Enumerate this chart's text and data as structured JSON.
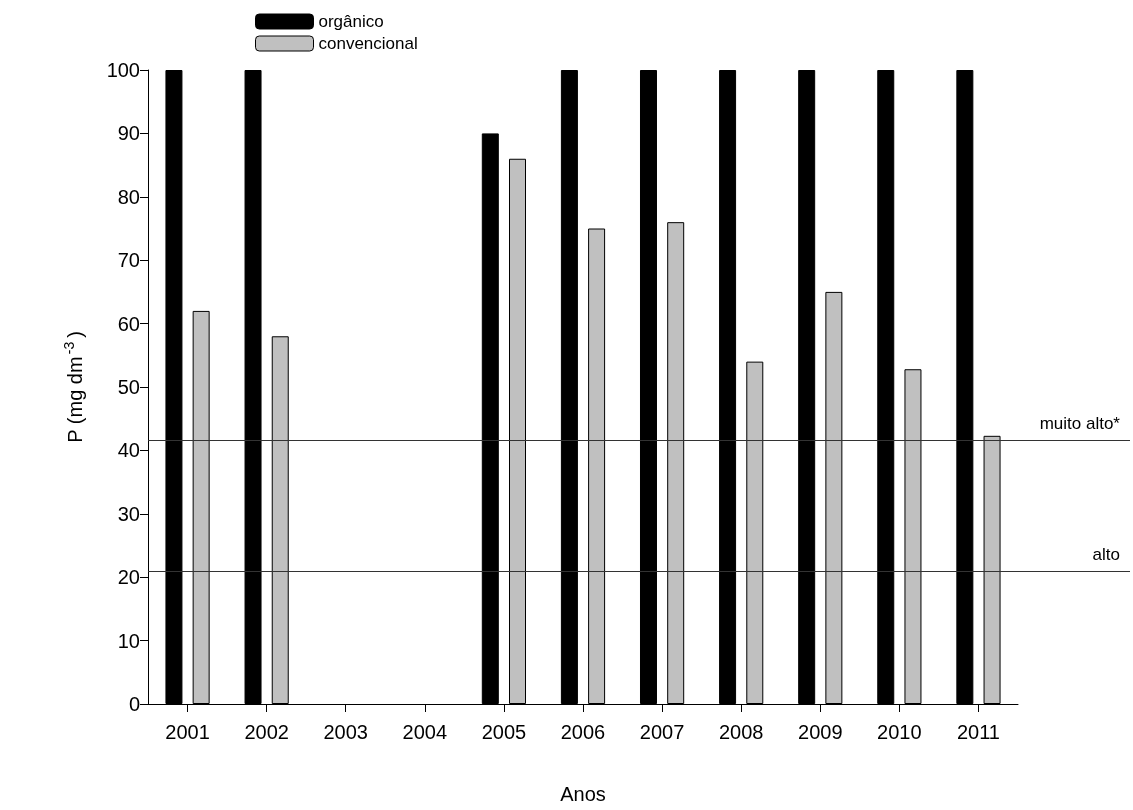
{
  "chart_data": {
    "type": "bar",
    "xlabel": "Anos",
    "ylabel": "P (mg dm$^{-3}$)",
    "categories": [
      "2001",
      "2002",
      "2003",
      "2004",
      "2005",
      "2006",
      "2007",
      "2008",
      "2009",
      "2010",
      "2011"
    ],
    "series": [
      {
        "name": "orgânico",
        "color": "#000000",
        "values": [
          100,
          100,
          null,
          null,
          90,
          100,
          100,
          100,
          100,
          100,
          100
        ]
      },
      {
        "name": "convencional",
        "color": "#c0c0c0",
        "values": [
          62,
          58,
          null,
          null,
          86,
          75,
          76,
          54,
          65,
          52.8,
          42.3
        ]
      }
    ],
    "ylim": [
      0,
      100
    ],
    "yticks": [
      0,
      10,
      20,
      30,
      40,
      50,
      60,
      70,
      80,
      90,
      100
    ],
    "ref_lines": [
      {
        "axis": "y",
        "value": 41.6,
        "label": "muito alto*",
        "color": "#333333"
      },
      {
        "axis": "y",
        "value": 21,
        "label": "alto",
        "color": "#333333"
      }
    ],
    "grid": false,
    "legend": "top left"
  }
}
